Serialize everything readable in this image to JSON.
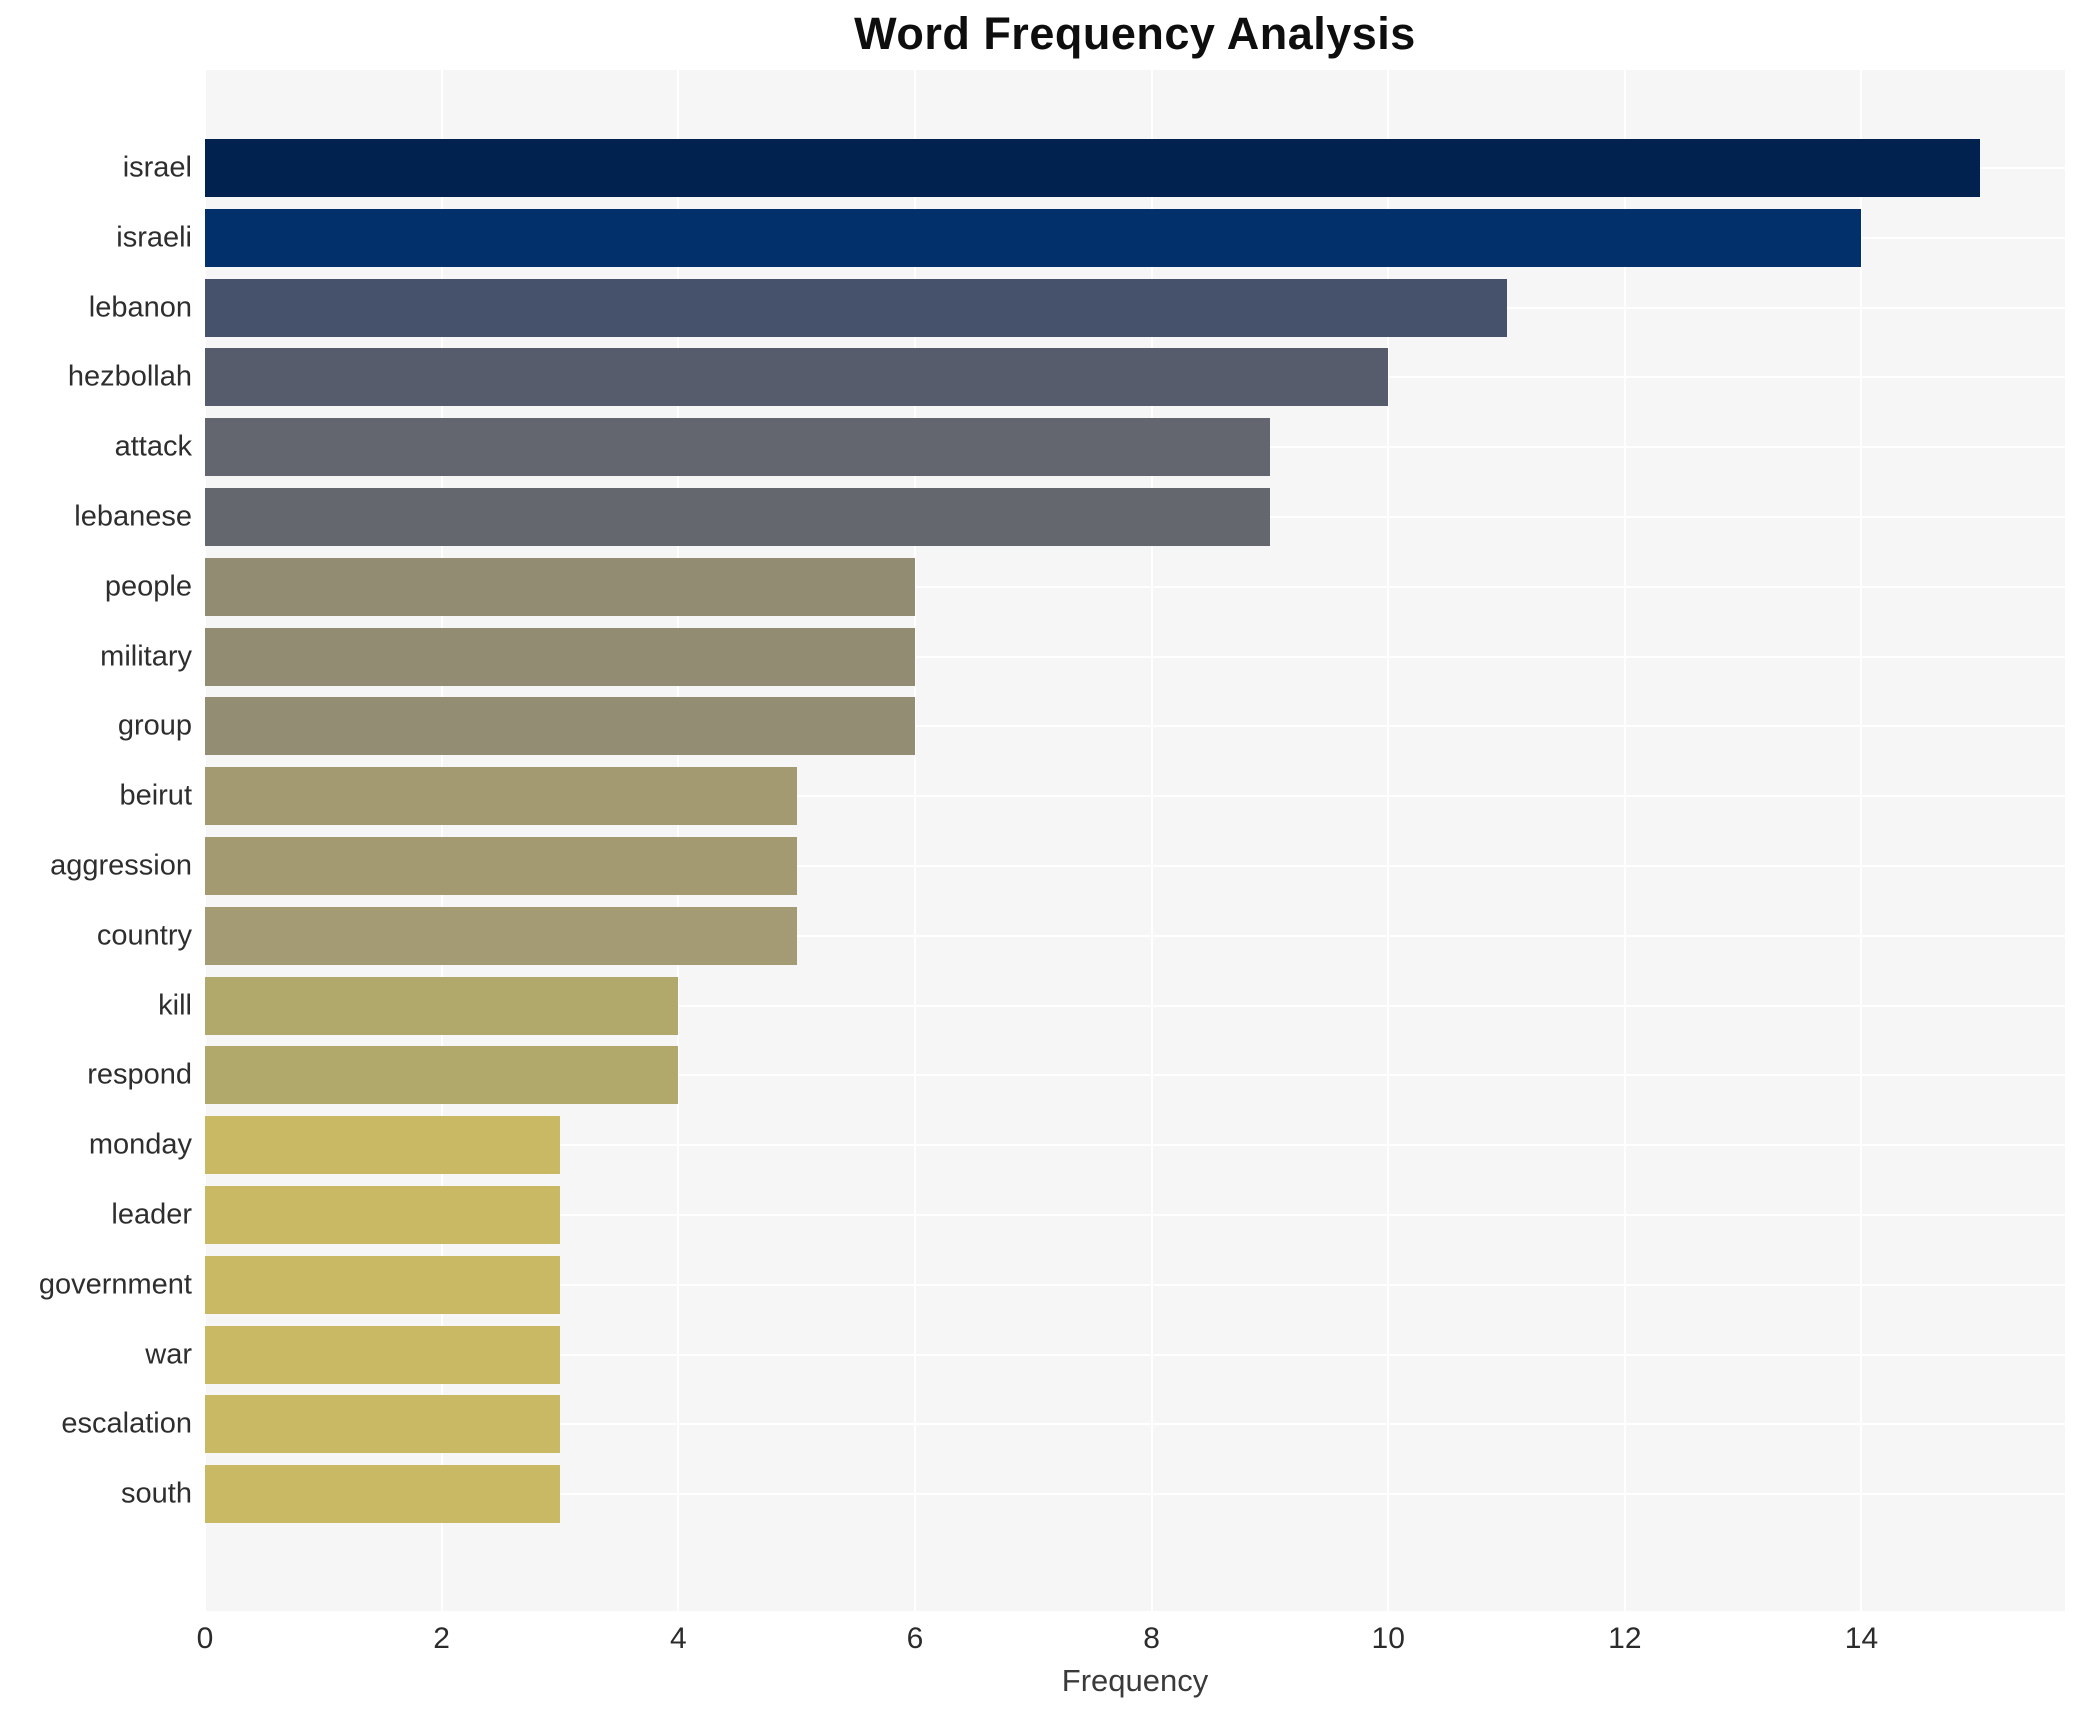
{
  "title": "Word Frequency Analysis",
  "chart_data": {
    "type": "bar",
    "orientation": "horizontal",
    "title": "Word Frequency Analysis",
    "xlabel": "Frequency",
    "ylabel": "",
    "categories": [
      "israel",
      "israeli",
      "lebanon",
      "hezbollah",
      "attack",
      "lebanese",
      "people",
      "military",
      "group",
      "beirut",
      "aggression",
      "country",
      "kill",
      "respond",
      "monday",
      "leader",
      "government",
      "war",
      "escalation",
      "south"
    ],
    "values": [
      15,
      14,
      11,
      10,
      9,
      9,
      6,
      6,
      6,
      5,
      5,
      5,
      4,
      4,
      3,
      3,
      3,
      3,
      3,
      3
    ],
    "bar_colors": [
      "#01224e",
      "#02306b",
      "#46516b",
      "#575c6c",
      "#64666f",
      "#65676f",
      "#928c73",
      "#928c73",
      "#938d74",
      "#a39a72",
      "#a39a72",
      "#a49a73",
      "#b1a86c",
      "#b1a86c",
      "#c9b964",
      "#c9b964",
      "#c9b964",
      "#c9b964",
      "#c9b964",
      "#c9b964"
    ],
    "xticks": [
      0,
      2,
      4,
      6,
      8,
      10,
      12,
      14
    ],
    "xlim": [
      0,
      15.72
    ],
    "grid": true,
    "legend": false
  },
  "colors": {
    "figure_bg": "#ffffff",
    "plot_bg": "#f6f6f7",
    "gridline": "#ffffff",
    "title_text": "#0e0e0e",
    "category_text": "#2e2e2e",
    "tick_text": "#2b2b2b",
    "axis_label_text": "#3a3a3a"
  }
}
